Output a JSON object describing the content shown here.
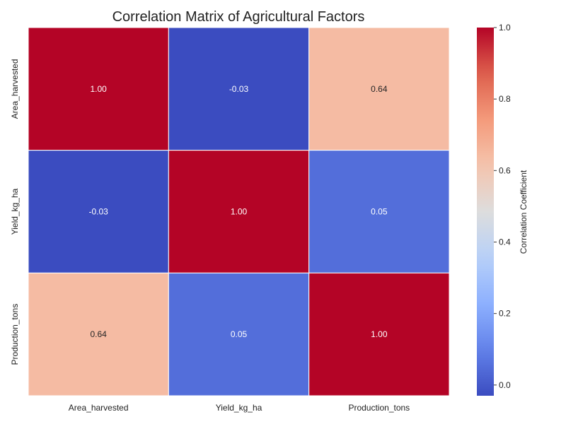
{
  "chart_data": {
    "type": "heatmap",
    "title": "Correlation Matrix of Agricultural Factors",
    "x_categories": [
      "Area_harvested",
      "Yield_kg_ha",
      "Production_tons"
    ],
    "y_categories": [
      "Area_harvested",
      "Yield_kg_ha",
      "Production_tons"
    ],
    "values": [
      [
        1.0,
        -0.03,
        0.64
      ],
      [
        -0.03,
        1.0,
        0.05
      ],
      [
        0.64,
        0.05,
        1.0
      ]
    ],
    "value_labels": [
      [
        "1.00",
        "-0.03",
        "0.64"
      ],
      [
        "-0.03",
        "1.00",
        "0.05"
      ],
      [
        "0.64",
        "0.05",
        "1.00"
      ]
    ],
    "colormap": "coolwarm",
    "colorbar": {
      "label": "Correlation Coefficient",
      "range": [
        -0.03,
        1.0
      ],
      "ticks": [
        0.0,
        0.2,
        0.4,
        0.6,
        0.8,
        1.0
      ],
      "tick_labels": [
        "0.0",
        "0.2",
        "0.4",
        "0.6",
        "0.8",
        "1.0"
      ]
    },
    "grid": false
  }
}
